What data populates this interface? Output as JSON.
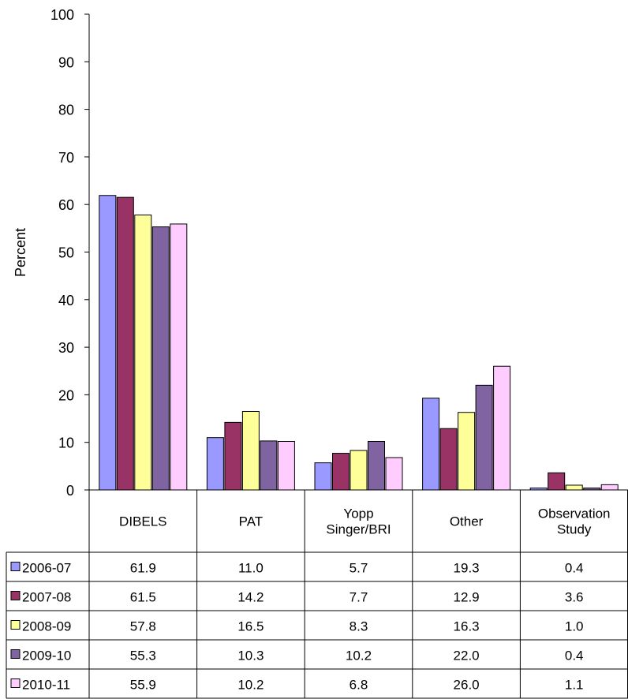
{
  "chart_data": {
    "type": "bar",
    "title": "",
    "xlabel": "",
    "ylabel": "Percent",
    "ylim": [
      0,
      100
    ],
    "yticks": [
      0,
      10,
      20,
      30,
      40,
      50,
      60,
      70,
      80,
      90,
      100
    ],
    "grid": false,
    "legend": "embedded in data table rows",
    "categories": [
      [
        "DIBELS"
      ],
      [
        "PAT"
      ],
      [
        "Yopp",
        "Singer/BRI"
      ],
      [
        "Other"
      ],
      [
        "Observation",
        "Study"
      ]
    ],
    "series": [
      {
        "name": "2006-07",
        "color": "#9999ff",
        "values": [
          61.9,
          11.0,
          5.7,
          19.3,
          0.4
        ],
        "labels": [
          "61.9",
          "11.0",
          "5.7",
          "19.3",
          "0.4"
        ]
      },
      {
        "name": "2007-08",
        "color": "#993366",
        "values": [
          61.5,
          14.2,
          7.7,
          12.9,
          3.6
        ],
        "labels": [
          "61.5",
          "14.2",
          "7.7",
          "12.9",
          "3.6"
        ]
      },
      {
        "name": "2008-09",
        "color": "#ffff99",
        "values": [
          57.8,
          16.5,
          8.3,
          16.3,
          1.0
        ],
        "labels": [
          "57.8",
          "16.5",
          "8.3",
          "16.3",
          "1.0"
        ]
      },
      {
        "name": "2009-10",
        "color": "#8064a2",
        "values": [
          55.3,
          10.3,
          10.2,
          22.0,
          0.4
        ],
        "labels": [
          "55.3",
          "10.3",
          "10.2",
          "22.0",
          "0.4"
        ]
      },
      {
        "name": "2010-11",
        "color": "#ffccff",
        "values": [
          55.9,
          10.2,
          6.8,
          26.0,
          1.1
        ],
        "labels": [
          "55.9",
          "10.2",
          "6.8",
          "26.0",
          "1.1"
        ]
      }
    ]
  }
}
